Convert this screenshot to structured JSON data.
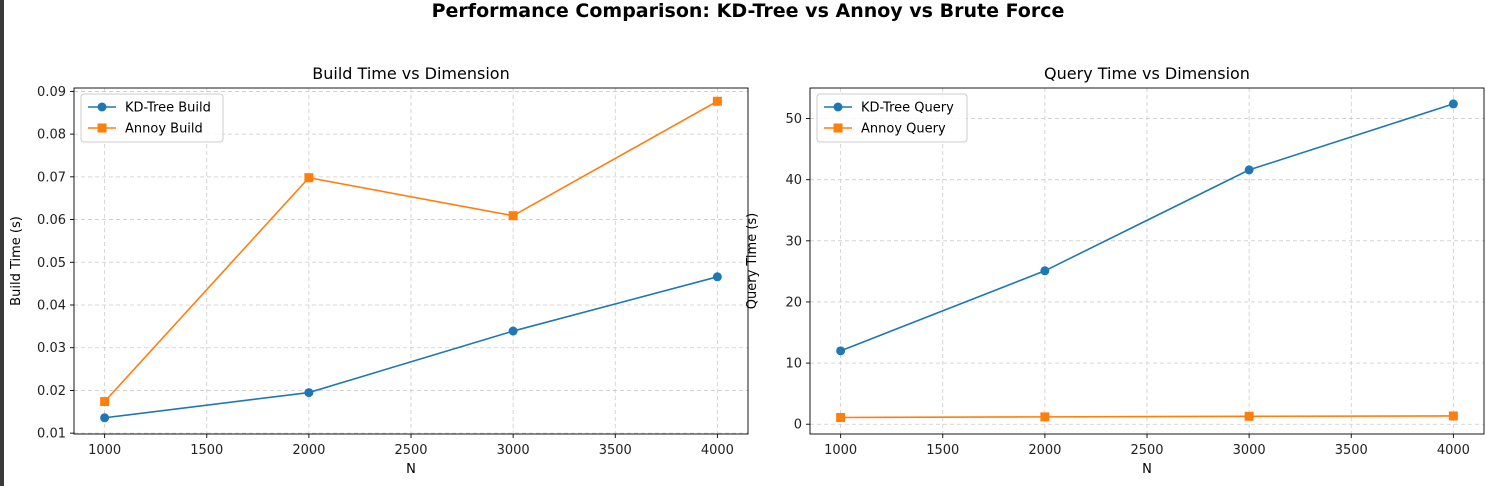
{
  "figure": {
    "suptitle": "Performance Comparison: KD-Tree vs Annoy vs Brute Force"
  },
  "colors": {
    "kd_tree": "#1f77b4",
    "annoy": "#ff7f0e",
    "grid": "#cccccc",
    "axis": "#000000"
  },
  "chart_data": [
    {
      "type": "line",
      "title": "Build Time vs Dimension",
      "xlabel": "N",
      "ylabel": "Build Time (s)",
      "x": [
        1000,
        2000,
        3000,
        4000
      ],
      "xlim": [
        850,
        4150
      ],
      "ylim": [
        0.0098,
        0.0908
      ],
      "xticks": [
        1000,
        1500,
        2000,
        2500,
        3000,
        3500,
        4000
      ],
      "yticks": [
        0.01,
        0.02,
        0.03,
        0.04,
        0.05,
        0.06,
        0.07,
        0.08,
        0.09
      ],
      "ytick_labels": [
        "0.01",
        "0.02",
        "0.03",
        "0.04",
        "0.05",
        "0.06",
        "0.07",
        "0.08",
        "0.09"
      ],
      "grid": true,
      "grid_style": "dashed",
      "legend_position": "upper-left",
      "series": [
        {
          "name": "KD-Tree Build",
          "marker": "circle",
          "color": "#1f77b4",
          "values": [
            0.0136,
            0.0195,
            0.0339,
            0.0466
          ]
        },
        {
          "name": "Annoy Build",
          "marker": "square",
          "color": "#ff7f0e",
          "values": [
            0.0174,
            0.0698,
            0.0609,
            0.0877
          ]
        }
      ]
    },
    {
      "type": "line",
      "title": "Query Time vs Dimension",
      "xlabel": "N",
      "ylabel": "Query Time (s)",
      "x": [
        1000,
        2000,
        3000,
        4000
      ],
      "xlim": [
        850,
        4150
      ],
      "ylim": [
        -1.6,
        55.0
      ],
      "xticks": [
        1000,
        1500,
        2000,
        2500,
        3000,
        3500,
        4000
      ],
      "yticks": [
        0,
        10,
        20,
        30,
        40,
        50
      ],
      "ytick_labels": [
        "0",
        "10",
        "20",
        "30",
        "40",
        "50"
      ],
      "grid": true,
      "grid_style": "dashed",
      "legend_position": "upper-left",
      "series": [
        {
          "name": "KD-Tree Query",
          "marker": "circle",
          "color": "#1f77b4",
          "values": [
            12.0,
            25.1,
            41.6,
            52.4
          ]
        },
        {
          "name": "Annoy Query",
          "marker": "square",
          "color": "#ff7f0e",
          "values": [
            1.1,
            1.2,
            1.3,
            1.35
          ]
        }
      ]
    }
  ]
}
